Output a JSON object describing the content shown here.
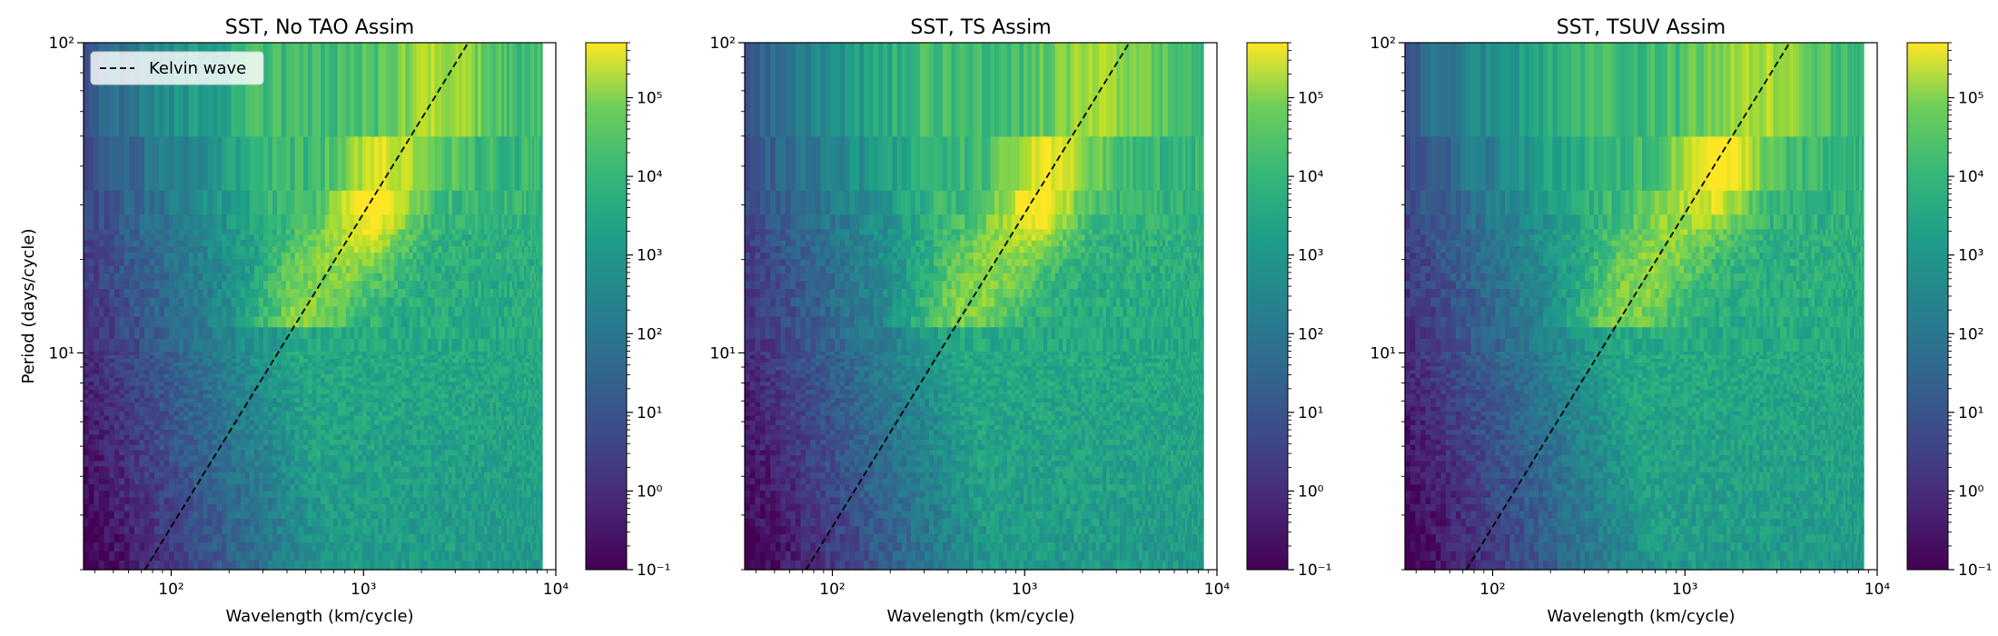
{
  "chart_data": [
    {
      "type": "heatmap",
      "title": "SST, No TAO Assim",
      "xlabel": "Wavelength (km/cycle)",
      "ylabel": "Period (days/cycle)",
      "x_scale": "log",
      "y_scale": "log",
      "xlim": [
        35,
        10000
      ],
      "ylim": [
        2,
        100
      ],
      "x_ticks": [
        {
          "value": 100,
          "label": "10²"
        },
        {
          "value": 1000,
          "label": "10³"
        },
        {
          "value": 10000,
          "label": "10⁴"
        }
      ],
      "y_ticks": [
        {
          "value": 10,
          "label": "10¹"
        },
        {
          "value": 100,
          "label": "10²"
        }
      ],
      "colorbar": {
        "scale": "log",
        "range": [
          0.1,
          500000
        ],
        "ticks": [
          "10⁻¹",
          "10⁰",
          "10¹",
          "10²",
          "10³",
          "10⁴",
          "10⁵"
        ],
        "colormap": "viridis"
      },
      "legend": {
        "placement": "top-left",
        "entries": [
          {
            "label": "Kelvin wave",
            "style": "dashed",
            "color": "#000000"
          }
        ]
      },
      "annotation_line": {
        "name": "Kelvin wave",
        "x": [
          73,
          3500
        ],
        "y": [
          2,
          100
        ]
      },
      "peak": {
        "wavelength": 1100,
        "period": 30,
        "value": 80000
      }
    },
    {
      "type": "heatmap",
      "title": "SST, TS Assim",
      "xlabel": "Wavelength (km/cycle)",
      "ylabel": "",
      "x_scale": "log",
      "y_scale": "log",
      "xlim": [
        35,
        10000
      ],
      "ylim": [
        2,
        100
      ],
      "x_ticks": [
        {
          "value": 100,
          "label": "10²"
        },
        {
          "value": 1000,
          "label": "10³"
        },
        {
          "value": 10000,
          "label": "10⁴"
        }
      ],
      "y_ticks": [
        {
          "value": 10,
          "label": "10¹"
        },
        {
          "value": 100,
          "label": "10²"
        }
      ],
      "colorbar": {
        "scale": "log",
        "range": [
          0.1,
          500000
        ],
        "ticks": [
          "10⁻¹",
          "10⁰",
          "10¹",
          "10²",
          "10³",
          "10⁴",
          "10⁵"
        ],
        "colormap": "viridis"
      },
      "legend": null,
      "annotation_line": {
        "name": "Kelvin wave",
        "x": [
          73,
          3500
        ],
        "y": [
          2,
          100
        ]
      },
      "peak": {
        "wavelength": 1200,
        "period": 33,
        "value": 60000
      }
    },
    {
      "type": "heatmap",
      "title": "SST, TSUV Assim",
      "xlabel": "Wavelength (km/cycle)",
      "ylabel": "",
      "x_scale": "log",
      "y_scale": "log",
      "xlim": [
        35,
        10000
      ],
      "ylim": [
        2,
        100
      ],
      "x_ticks": [
        {
          "value": 100,
          "label": "10²"
        },
        {
          "value": 1000,
          "label": "10³"
        },
        {
          "value": 10000,
          "label": "10⁴"
        }
      ],
      "y_ticks": [
        {
          "value": 10,
          "label": "10¹"
        },
        {
          "value": 100,
          "label": "10²"
        }
      ],
      "colorbar": {
        "scale": "log",
        "range": [
          0.1,
          500000
        ],
        "ticks": [
          "10⁻¹",
          "10⁰",
          "10¹",
          "10²",
          "10³",
          "10⁴",
          "10⁵"
        ],
        "colormap": "viridis"
      },
      "legend": null,
      "annotation_line": {
        "name": "Kelvin wave",
        "x": [
          73,
          3500
        ],
        "y": [
          2,
          100
        ]
      },
      "peak": {
        "wavelength": 1500,
        "period": 40,
        "value": 70000
      }
    }
  ]
}
